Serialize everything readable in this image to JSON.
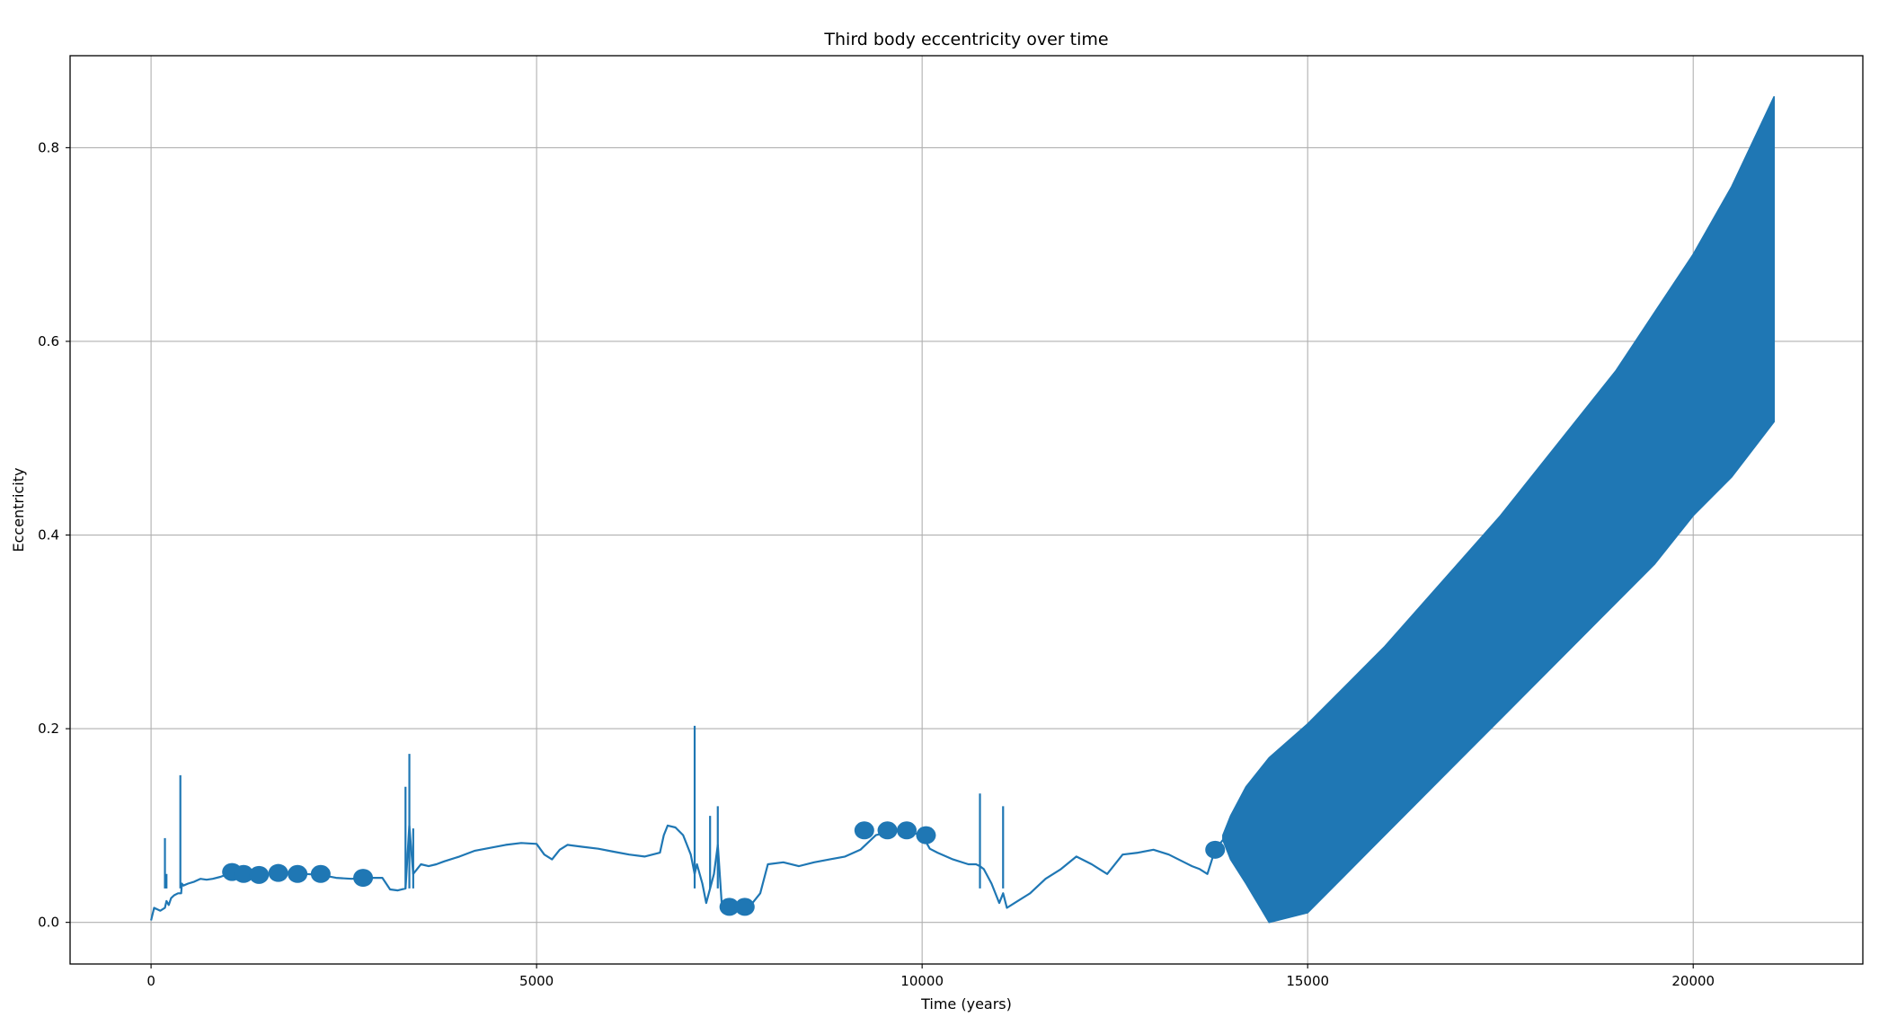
{
  "chart_data": {
    "type": "line",
    "title": "Third body eccentricity over time",
    "xlabel": "Time (years)",
    "ylabel": "Eccentricity",
    "xlim": [
      -1050,
      22200
    ],
    "ylim": [
      -0.043,
      0.895
    ],
    "xticks": [
      0,
      5000,
      10000,
      15000,
      20000
    ],
    "xtick_labels": [
      "0",
      "5000",
      "10000",
      "15000",
      "20000"
    ],
    "yticks": [
      0.0,
      0.2,
      0.4,
      0.6,
      0.8
    ],
    "ytick_labels": [
      "0.0",
      "0.2",
      "0.4",
      "0.6",
      "0.8"
    ],
    "grid": true,
    "line_color": "#1f77b4",
    "series": [
      {
        "x": [
          0,
          40,
          120,
          180,
          200,
          230,
          260,
          300,
          350,
          390,
          400,
          420,
          480,
          560,
          640,
          720,
          800,
          900,
          1000,
          1200,
          1400,
          1600,
          1800,
          2000,
          2200,
          2400,
          2600,
          2800,
          3000,
          3100,
          3200,
          3300,
          3350,
          3400,
          3450,
          3500,
          3600,
          3700,
          3800,
          4000,
          4200,
          4400,
          4600,
          4800,
          5000,
          5100,
          5200,
          5300,
          5400,
          5600,
          5800,
          6000,
          6200,
          6400,
          6600,
          6650,
          6700,
          6800,
          6900,
          7000,
          7050,
          7080,
          7150,
          7200,
          7300,
          7350,
          7400,
          7500,
          7600,
          7700,
          7800,
          7900,
          8000,
          8200,
          8400,
          8600,
          8800,
          9000,
          9200,
          9400,
          9600,
          9800,
          10000,
          10100,
          10200,
          10400,
          10600,
          10700,
          10750,
          10800,
          10900,
          11000,
          11050,
          11100,
          11200,
          11400,
          11600,
          11800,
          12000,
          12200,
          12300,
          12400,
          12600,
          12800,
          13000,
          13200,
          13400,
          13500,
          13600,
          13700,
          13800,
          13900
        ],
        "y": [
          0.002,
          0.015,
          0.012,
          0.015,
          0.022,
          0.018,
          0.025,
          0.028,
          0.03,
          0.03,
          0.04,
          0.038,
          0.04,
          0.042,
          0.045,
          0.044,
          0.045,
          0.047,
          0.05,
          0.05,
          0.048,
          0.051,
          0.052,
          0.05,
          0.049,
          0.046,
          0.045,
          0.046,
          0.046,
          0.034,
          0.033,
          0.035,
          0.1,
          0.05,
          0.055,
          0.06,
          0.058,
          0.06,
          0.063,
          0.068,
          0.074,
          0.077,
          0.08,
          0.082,
          0.081,
          0.07,
          0.065,
          0.075,
          0.08,
          0.078,
          0.076,
          0.073,
          0.07,
          0.068,
          0.072,
          0.09,
          0.1,
          0.098,
          0.09,
          0.07,
          0.05,
          0.06,
          0.04,
          0.02,
          0.05,
          0.08,
          0.02,
          0.012,
          0.015,
          0.018,
          0.02,
          0.03,
          0.06,
          0.062,
          0.058,
          0.062,
          0.065,
          0.068,
          0.075,
          0.09,
          0.094,
          0.094,
          0.09,
          0.076,
          0.072,
          0.065,
          0.06,
          0.06,
          0.058,
          0.055,
          0.04,
          0.02,
          0.03,
          0.015,
          0.02,
          0.03,
          0.045,
          0.055,
          0.068,
          0.06,
          0.055,
          0.05,
          0.07,
          0.072,
          0.075,
          0.07,
          0.062,
          0.058,
          0.055,
          0.05,
          0.075,
          0.085
        ]
      },
      {
        "x": [
          13900,
          14000,
          14200,
          14500,
          15000,
          15500,
          16000,
          16500,
          17000,
          17500,
          18000,
          18500,
          19000,
          19500,
          20000,
          20500,
          21050
        ],
        "y_upper": [
          0.09,
          0.11,
          0.14,
          0.17,
          0.205,
          0.245,
          0.285,
          0.33,
          0.375,
          0.42,
          0.47,
          0.52,
          0.57,
          0.63,
          0.69,
          0.76,
          0.853
        ],
        "y_lower": [
          0.085,
          0.065,
          0.04,
          0.0,
          0.01,
          0.05,
          0.09,
          0.13,
          0.17,
          0.21,
          0.25,
          0.29,
          0.33,
          0.37,
          0.42,
          0.46,
          0.517
        ]
      }
    ],
    "spikes": [
      {
        "x": 180,
        "y": 0.087
      },
      {
        "x": 200,
        "y": 0.05
      },
      {
        "x": 380,
        "y": 0.152
      },
      {
        "x": 3300,
        "y": 0.14
      },
      {
        "x": 3350,
        "y": 0.174
      },
      {
        "x": 3400,
        "y": 0.097
      },
      {
        "x": 7050,
        "y": 0.203
      },
      {
        "x": 7250,
        "y": 0.11
      },
      {
        "x": 7350,
        "y": 0.12
      },
      {
        "x": 10750,
        "y": 0.133
      },
      {
        "x": 11050,
        "y": 0.12
      }
    ],
    "blobs": [
      {
        "x": 1050,
        "y": 0.052
      },
      {
        "x": 1200,
        "y": 0.05
      },
      {
        "x": 1400,
        "y": 0.049
      },
      {
        "x": 1650,
        "y": 0.051
      },
      {
        "x": 1900,
        "y": 0.05
      },
      {
        "x": 2200,
        "y": 0.05
      },
      {
        "x": 2750,
        "y": 0.046
      },
      {
        "x": 7500,
        "y": 0.016
      },
      {
        "x": 7700,
        "y": 0.016
      },
      {
        "x": 9250,
        "y": 0.095
      },
      {
        "x": 9550,
        "y": 0.095
      },
      {
        "x": 9800,
        "y": 0.095
      },
      {
        "x": 10050,
        "y": 0.09
      },
      {
        "x": 13800,
        "y": 0.075
      }
    ]
  }
}
